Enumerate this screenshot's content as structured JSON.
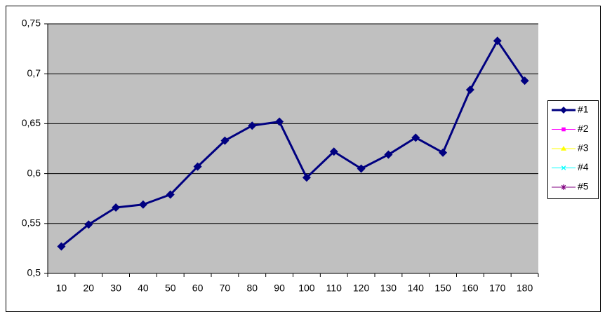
{
  "chart_data": {
    "type": "line",
    "categories": [
      "10",
      "20",
      "30",
      "40",
      "50",
      "60",
      "70",
      "80",
      "90",
      "100",
      "110",
      "120",
      "130",
      "140",
      "150",
      "160",
      "170",
      "180"
    ],
    "series": [
      {
        "name": "#1",
        "color": "#000080",
        "marker": "diamond",
        "values": [
          0.527,
          0.549,
          0.566,
          0.569,
          0.579,
          0.607,
          0.633,
          0.648,
          0.652,
          0.596,
          0.622,
          0.605,
          0.619,
          0.636,
          0.621,
          0.684,
          0.733,
          0.693
        ]
      },
      {
        "name": "#2",
        "color": "#ff00ff",
        "marker": "square",
        "values": [
          null,
          null,
          null,
          null,
          null,
          null,
          null,
          null,
          null,
          null,
          null,
          null,
          null,
          null,
          null,
          null,
          null,
          null
        ]
      },
      {
        "name": "#3",
        "color": "#ffff00",
        "marker": "triangle",
        "values": [
          null,
          null,
          null,
          null,
          null,
          null,
          null,
          null,
          null,
          null,
          null,
          null,
          null,
          null,
          null,
          null,
          null,
          null
        ]
      },
      {
        "name": "#4",
        "color": "#00ffff",
        "marker": "x",
        "values": [
          null,
          null,
          null,
          null,
          null,
          null,
          null,
          null,
          null,
          null,
          null,
          null,
          null,
          null,
          null,
          null,
          null,
          null
        ]
      },
      {
        "name": "#5",
        "color": "#800080",
        "marker": "star",
        "values": [
          null,
          null,
          null,
          null,
          null,
          null,
          null,
          null,
          null,
          null,
          null,
          null,
          null,
          null,
          null,
          null,
          null,
          null
        ]
      }
    ],
    "ylim": [
      0.5,
      0.75
    ],
    "yticks": [
      {
        "value": 0.5,
        "label": "0,5"
      },
      {
        "value": 0.55,
        "label": "0,55"
      },
      {
        "value": 0.6,
        "label": "0,6"
      },
      {
        "value": 0.65,
        "label": "0,65"
      },
      {
        "value": 0.7,
        "label": "0,7"
      },
      {
        "value": 0.75,
        "label": "0,75"
      }
    ],
    "grid": true,
    "legend": "right"
  }
}
